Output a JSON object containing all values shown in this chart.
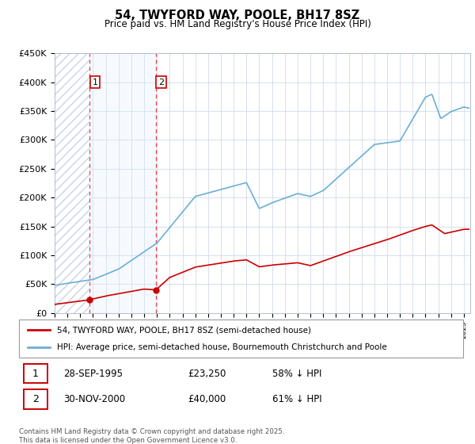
{
  "title": "54, TWYFORD WAY, POOLE, BH17 8SZ",
  "subtitle": "Price paid vs. HM Land Registry's House Price Index (HPI)",
  "ylim": [
    0,
    450000
  ],
  "yticks": [
    0,
    50000,
    100000,
    150000,
    200000,
    250000,
    300000,
    350000,
    400000,
    450000
  ],
  "ytick_labels": [
    "£0",
    "£50K",
    "£100K",
    "£150K",
    "£200K",
    "£250K",
    "£300K",
    "£350K",
    "£400K",
    "£450K"
  ],
  "hpi_color": "#6baed6",
  "price_color": "#cc0000",
  "hatch_color": "#c8d4e8",
  "light_blue_fill": "#ddeeff",
  "transactions": [
    {
      "date": 1995.75,
      "price": 23250,
      "label": "1"
    },
    {
      "date": 2000.917,
      "price": 40000,
      "label": "2"
    }
  ],
  "legend_entries": [
    "54, TWYFORD WAY, POOLE, BH17 8SZ (semi-detached house)",
    "HPI: Average price, semi-detached house, Bournemouth Christchurch and Poole"
  ],
  "annotation_rows": [
    {
      "num": "1",
      "date": "28-SEP-1995",
      "price": "£23,250",
      "note": "58% ↓ HPI"
    },
    {
      "num": "2",
      "date": "30-NOV-2000",
      "price": "£40,000",
      "note": "61% ↓ HPI"
    }
  ],
  "footer": "Contains HM Land Registry data © Crown copyright and database right 2025.\nThis data is licensed under the Open Government Licence v3.0.",
  "xmin": 1993,
  "xmax": 2025.5
}
